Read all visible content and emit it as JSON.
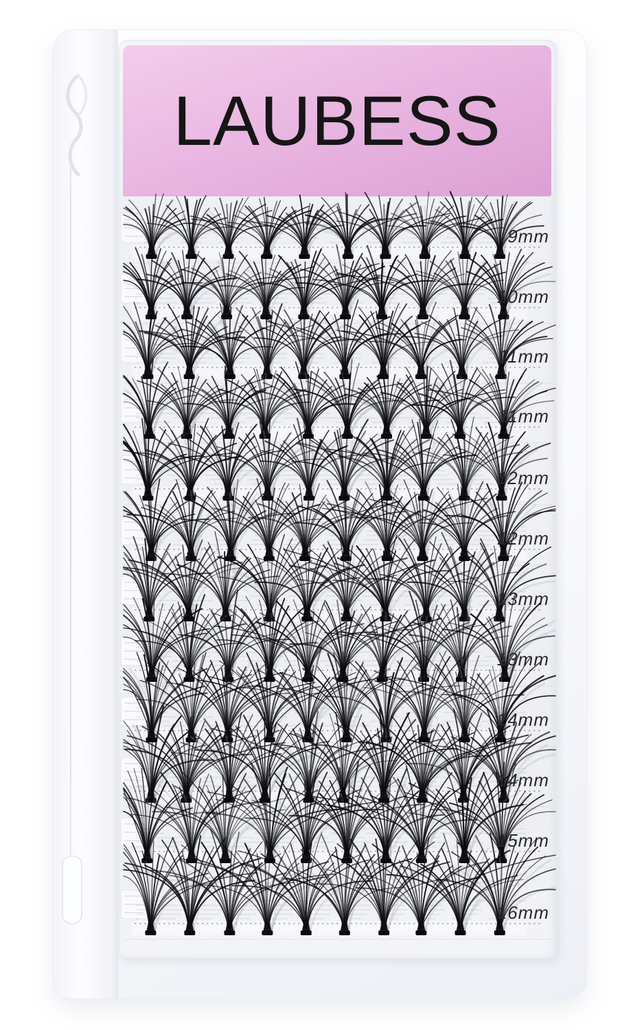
{
  "brand": {
    "name": "LAUBESS"
  },
  "tray": {
    "clusters_per_row": 10,
    "rows": [
      {
        "label": "9mm",
        "mm": 9
      },
      {
        "label": "10mm",
        "mm": 10
      },
      {
        "label": "11mm",
        "mm": 11
      },
      {
        "label": "11mm",
        "mm": 11
      },
      {
        "label": "12mm",
        "mm": 12
      },
      {
        "label": "12mm",
        "mm": 12
      },
      {
        "label": "13mm",
        "mm": 13
      },
      {
        "label": "13mm",
        "mm": 13
      },
      {
        "label": "14mm",
        "mm": 14
      },
      {
        "label": "14mm",
        "mm": 14
      },
      {
        "label": "15mm",
        "mm": 15
      },
      {
        "label": "16mm",
        "mm": 16
      }
    ]
  },
  "colors": {
    "header_pink_top": "#f3cdeb",
    "header_pink_mid": "#e9b6e1",
    "header_pink_bottom": "#dca0d3",
    "brand_text": "#161616",
    "label_text": "#28282b",
    "lash_black": "#0b0b0e",
    "case_white": "#fbfcfe",
    "tray_white": "#f1f2f6"
  }
}
